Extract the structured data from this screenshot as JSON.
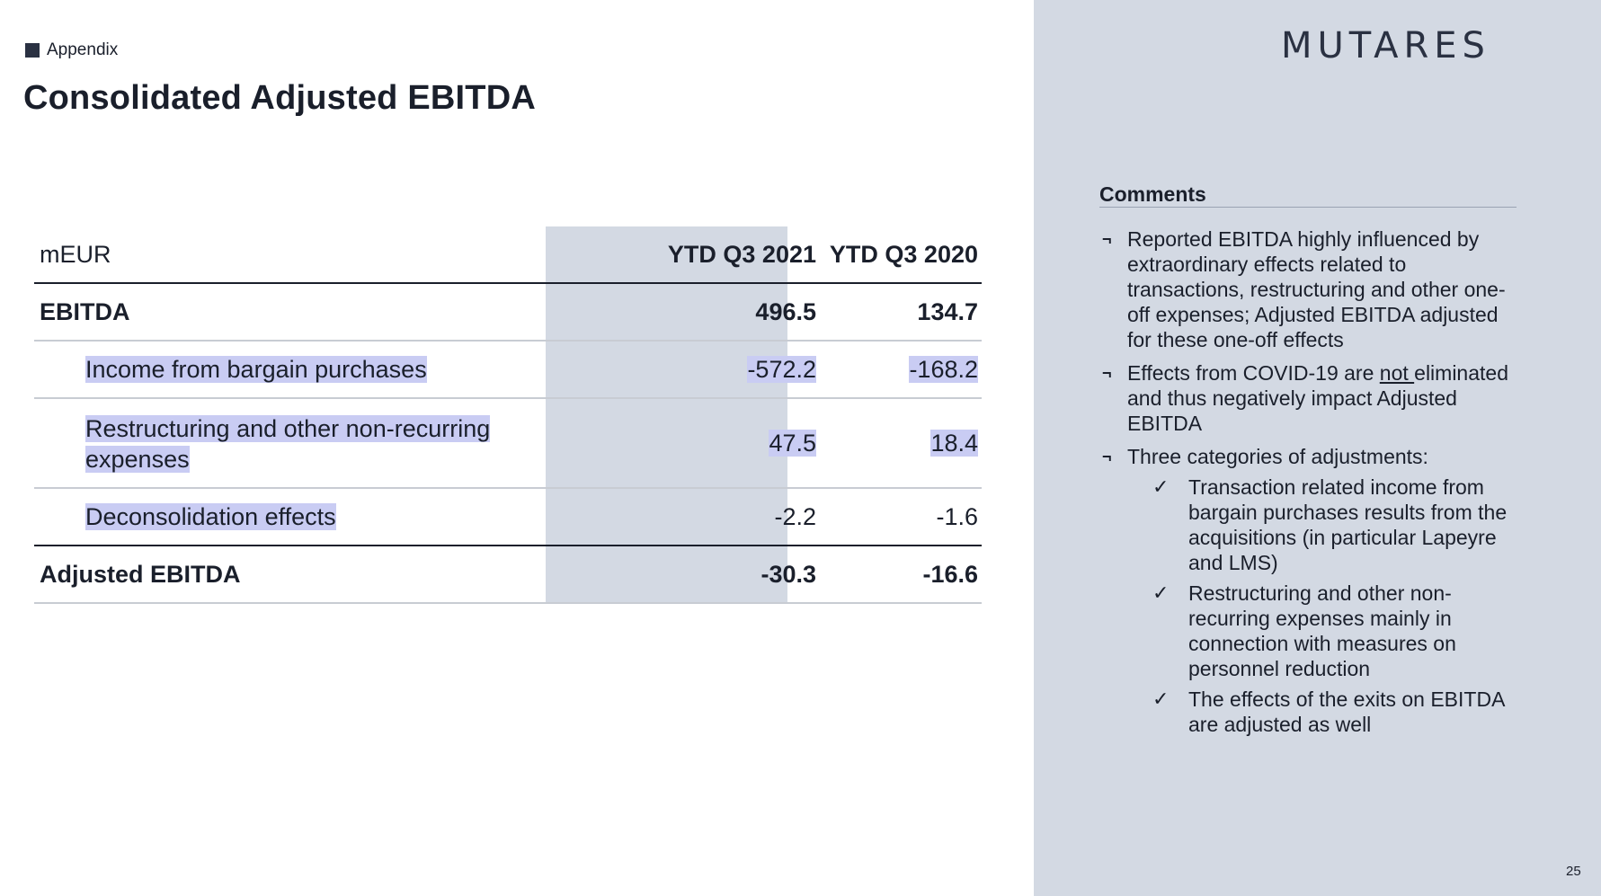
{
  "header": {
    "section": "Appendix",
    "title": "Consolidated Adjusted EBITDA",
    "logo": "MUTARES"
  },
  "table": {
    "unit": "mEUR",
    "columns": [
      "YTD Q3 2021",
      "YTD Q3 2020"
    ],
    "rows": [
      {
        "label": "EBITDA",
        "v1": "496.5",
        "v2": "134.7"
      },
      {
        "label": "Income from bargain purchases",
        "v1": "-572.2",
        "v2": "-168.2"
      },
      {
        "label_line1": "Restructuring and other non-recurring",
        "label_line2": "expenses",
        "v1": "47.5",
        "v2": "18.4"
      },
      {
        "label": "Deconsolidation effects",
        "v1": "-2.2",
        "v2": "-1.6"
      },
      {
        "label": "Adjusted EBITDA",
        "v1": "-30.3",
        "v2": "-16.6"
      }
    ]
  },
  "comments": {
    "title": "Comments",
    "bullets": [
      {
        "lines": [
          "Reported EBITDA highly influenced by",
          "extraordinary effects related to",
          "transactions, restructuring and other one-",
          "off expenses; Adjusted EBITDA adjusted",
          "for these one-off effects"
        ]
      },
      {
        "pre": "Effects from COVID-19 are ",
        "underline": "not ",
        "post": "eliminated",
        "lines": [
          "and thus negatively impact Adjusted",
          "EBITDA"
        ]
      },
      {
        "lines": [
          "Three categories of adjustments:"
        ]
      }
    ],
    "subs": [
      {
        "lines": [
          "Transaction related income from",
          "bargain purchases results from the",
          "acquisitions (in particular Lapeyre",
          "and LMS)"
        ]
      },
      {
        "lines": [
          "Restructuring and other non-",
          "recurring expenses mainly in",
          "connection with measures on",
          "personnel reduction"
        ]
      },
      {
        "lines": [
          "The effects of the exits on EBITDA",
          "are adjusted as well"
        ]
      }
    ],
    "bullet_marker": "¬",
    "check_marker": "✓"
  },
  "footer": {
    "page": "25"
  }
}
